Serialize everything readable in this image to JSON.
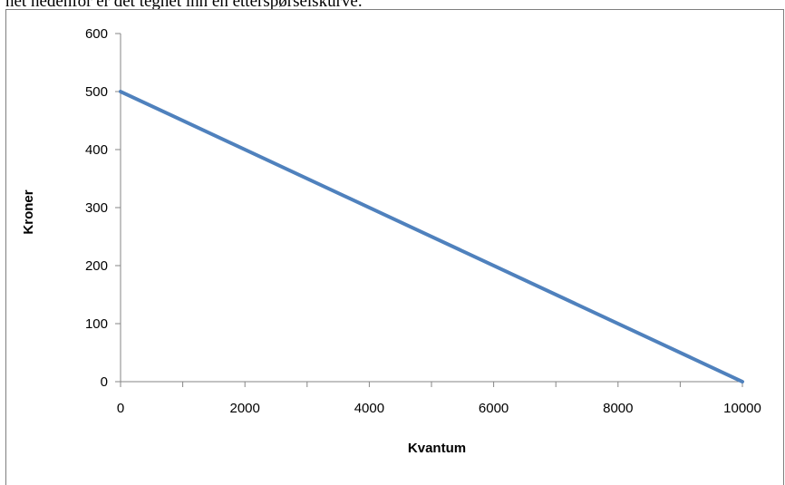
{
  "caption": "net nedenfor er det tegnet inn en etterspørselskurve.",
  "chart_data": {
    "type": "line",
    "title": "",
    "xlabel": "Kvantum",
    "ylabel": "Kroner",
    "xlim": [
      0,
      10000
    ],
    "ylim": [
      0,
      600
    ],
    "xticks": [
      "0",
      "2000",
      "4000",
      "6000",
      "8000",
      "10000"
    ],
    "yticks": [
      "0",
      "100",
      "200",
      "300",
      "400",
      "500",
      "600"
    ],
    "grid": false,
    "legend": "none",
    "series": [
      {
        "x": [
          0,
          10000
        ],
        "y": [
          500,
          0
        ],
        "color": "#4f81bd"
      }
    ]
  }
}
